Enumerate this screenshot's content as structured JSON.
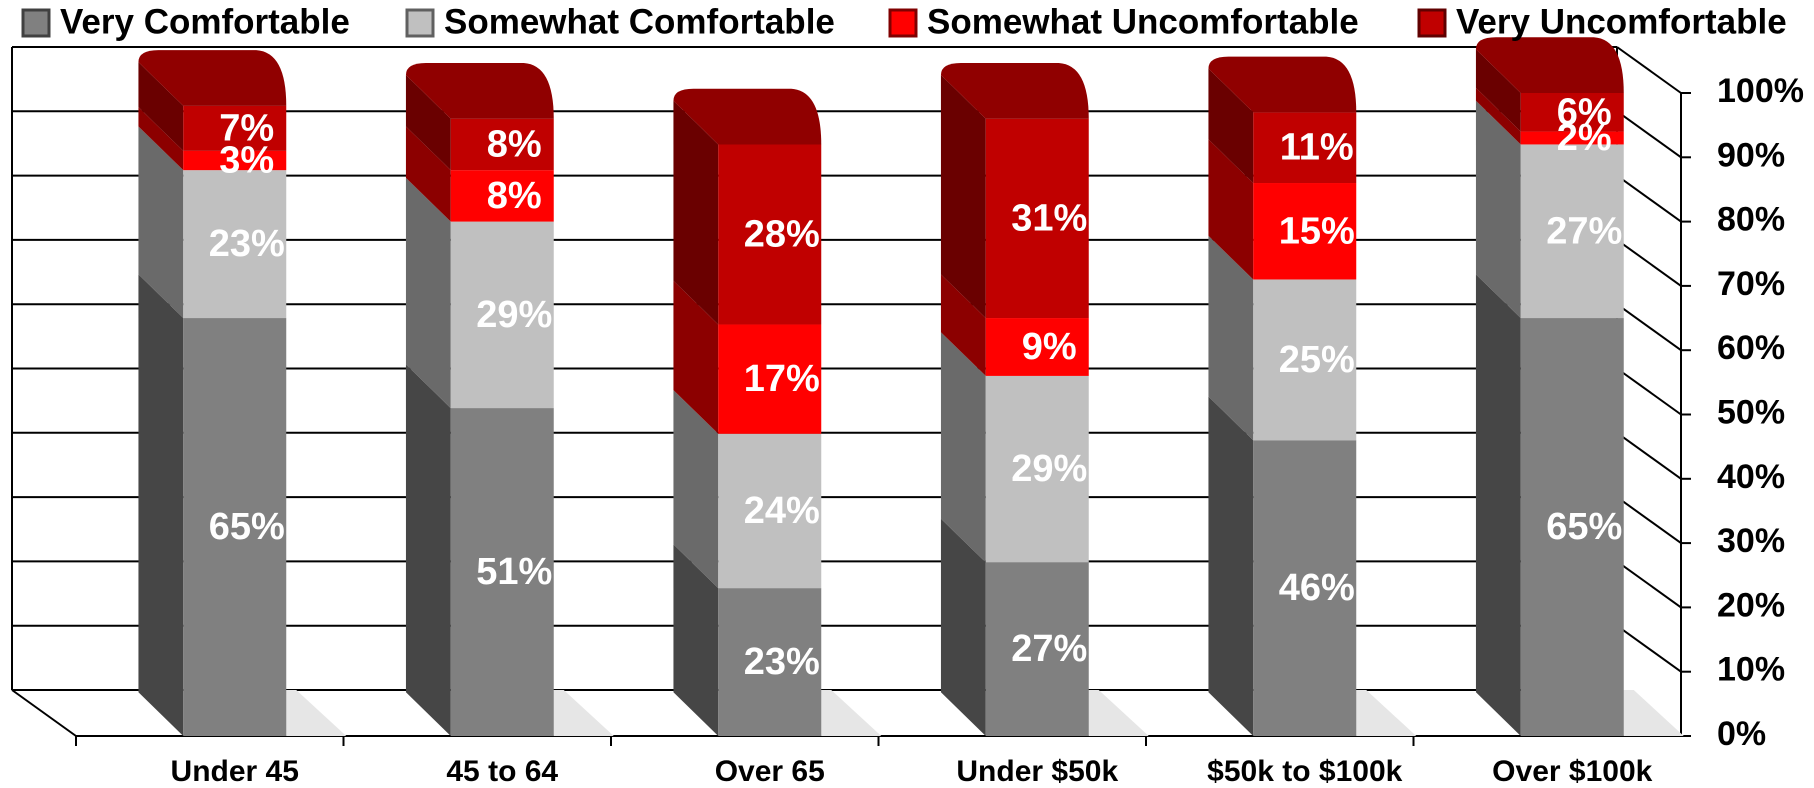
{
  "chart_data": {
    "type": "stacked_bar_3d",
    "categories": [
      "Under 45",
      "45 to 64",
      "Over 65",
      "Under $50k",
      "$50k to $100k",
      "Over $100k"
    ],
    "series": [
      {
        "name": "Very Comfortable",
        "color": "#808080",
        "values": [
          65,
          51,
          23,
          27,
          46,
          65
        ],
        "value_labels": [
          "65%",
          "51%",
          "23%",
          "27%",
          "46%",
          "65%"
        ]
      },
      {
        "name": "Somewhat Comfortable",
        "color": "#c0c0c0",
        "values": [
          23,
          29,
          24,
          29,
          25,
          27
        ],
        "value_labels": [
          "23%",
          "29%",
          "24%",
          "29%",
          "25%",
          "27%"
        ]
      },
      {
        "name": "Somewhat Uncomfortable",
        "color": "#ff0000",
        "values": [
          3,
          8,
          17,
          9,
          15,
          2
        ],
        "value_labels": [
          "3%",
          "8%",
          "17%",
          "9%",
          "15%",
          "2%"
        ]
      },
      {
        "name": "Very Uncomfortable",
        "color": "#c00000",
        "values": [
          7,
          8,
          28,
          31,
          11,
          6
        ],
        "value_labels": [
          "7%",
          "8%",
          "28%",
          "31%",
          "11%",
          "6%"
        ]
      }
    ],
    "ylim": [
      0,
      100
    ],
    "yticks": [
      {
        "value": 0,
        "label": "0%"
      },
      {
        "value": 10,
        "label": "10%"
      },
      {
        "value": 20,
        "label": "20%"
      },
      {
        "value": 30,
        "label": "30%"
      },
      {
        "value": 40,
        "label": "40%"
      },
      {
        "value": 50,
        "label": "50%"
      },
      {
        "value": 60,
        "label": "60%"
      },
      {
        "value": 70,
        "label": "70%"
      },
      {
        "value": 80,
        "label": "80%"
      },
      {
        "value": 90,
        "label": "90%"
      },
      {
        "value": 100,
        "label": "100%"
      }
    ],
    "grid": true,
    "legend": "top"
  }
}
